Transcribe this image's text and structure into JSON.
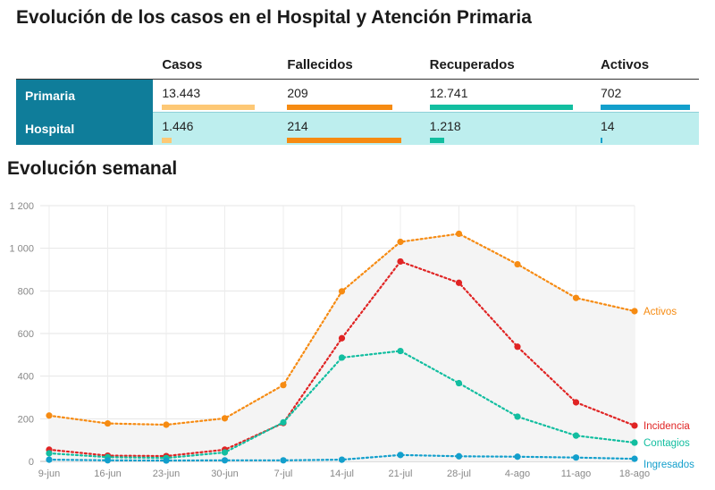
{
  "title": "Evolución de los casos en el Hospital y Atención Primaria",
  "subtitle": "Evolución semanal",
  "table": {
    "columns": [
      "Casos",
      "Fallecidos",
      "Recuperados",
      "Activos"
    ],
    "bar_colors": [
      "#fdc875",
      "#f68b12",
      "#12bea0",
      "#139fcc"
    ],
    "rows": [
      {
        "label": "Primaria",
        "values": [
          "13.443",
          "209",
          "12.741",
          "702"
        ],
        "fractions": [
          0.86,
          0.98,
          1.0,
          1.0
        ]
      },
      {
        "label": "Hospital",
        "values": [
          "1.446",
          "214",
          "1.218",
          "14"
        ],
        "fractions": [
          0.09,
          1.0,
          0.1,
          0.02
        ]
      }
    ]
  },
  "chart_data": {
    "type": "line",
    "title": "Evolución semanal",
    "xlabel": "",
    "ylabel": "",
    "categories": [
      "9-jun",
      "16-jun",
      "23-jun",
      "30-jun",
      "7-jul",
      "14-jul",
      "21-jul",
      "28-jul",
      "4-ago",
      "11-ago",
      "18-ago"
    ],
    "y_ticks": [
      "0",
      "200",
      "400",
      "600",
      "800",
      "1 000",
      "1 200"
    ],
    "ylim": [
      0,
      1200
    ],
    "grid": true,
    "series": [
      {
        "name": "Activos",
        "color": "#f68b12",
        "values": [
          215,
          178,
          172,
          202,
          358,
          798,
          1030,
          1068,
          925,
          767,
          705
        ],
        "area": true
      },
      {
        "name": "Incidencia",
        "color": "#e02424",
        "values": [
          55,
          27,
          25,
          55,
          180,
          578,
          938,
          838,
          538,
          277,
          168
        ]
      },
      {
        "name": "Contagios",
        "color": "#12bea0",
        "values": [
          38,
          20,
          16,
          42,
          183,
          487,
          518,
          367,
          210,
          121,
          88
        ]
      },
      {
        "name": "Ingresados",
        "color": "#139fcc",
        "values": [
          8,
          5,
          4,
          5,
          5,
          8,
          30,
          24,
          22,
          18,
          12
        ]
      }
    ]
  }
}
